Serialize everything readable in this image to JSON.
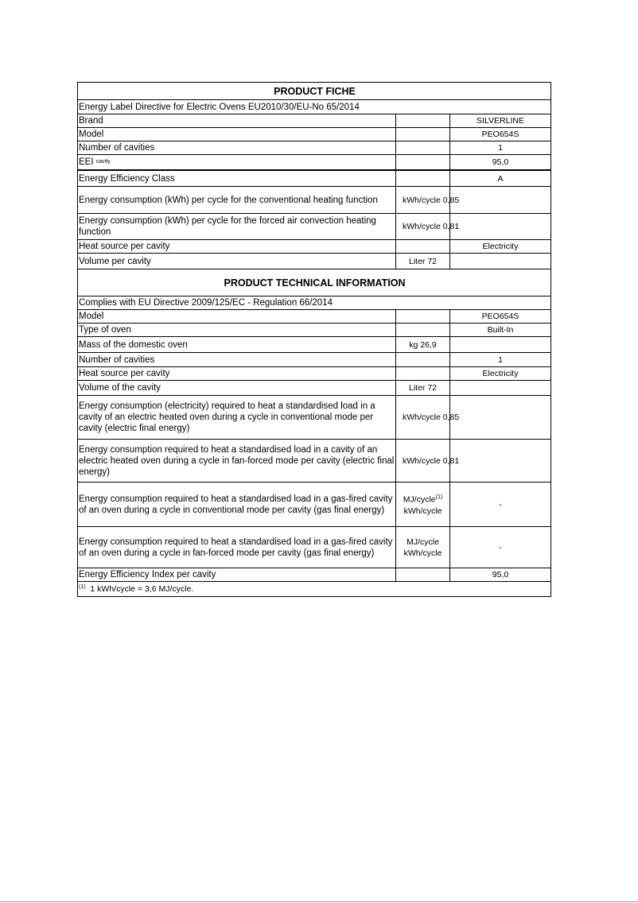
{
  "fiche": {
    "title": "PRODUCT FICHE",
    "directive": "Energy Label Directive for Electric Ovens EU2010/30/EU-No 65/2014",
    "rows": [
      {
        "label": "Brand",
        "unit": "",
        "value": "SILVERLINE"
      },
      {
        "label": "Model",
        "unit": "",
        "value": "PEO654S"
      },
      {
        "label": "Number of cavities",
        "unit": "",
        "value": "1"
      },
      {
        "label": "EEI",
        "label_sub": "cavity",
        "unit": "",
        "value": "95,0"
      },
      {
        "label": "Energy Efficiency Class",
        "unit": "",
        "value": "A"
      },
      {
        "label": "Energy consumption (kWh) per cycle for the conventional heating function",
        "unit": "kWh/cycle 0,85",
        "value": ""
      },
      {
        "label": "Energy consumption (kWh) per cycle for the forced air convection heating function",
        "unit": "kWh/cycle 0,81",
        "value": ""
      },
      {
        "label": "Heat source per cavity",
        "unit": "",
        "value": "Electricity"
      },
      {
        "label": "Volume per cavity",
        "unit": "Liter 72",
        "value": ""
      }
    ]
  },
  "technical": {
    "title": "PRODUCT TECHNICAL INFORMATION",
    "directive": "Complies with EU Directive 2009/125/EC - Regulation 66/2014",
    "rows": [
      {
        "label": "Model",
        "unit": "",
        "value": "PEO654S"
      },
      {
        "label": "Type of oven",
        "unit": "",
        "value": "Built-In"
      },
      {
        "label": "Mass of the domestic oven",
        "unit": "kg 26,9",
        "value": ""
      },
      {
        "label": "Number of cavities",
        "unit": "",
        "value": "1"
      },
      {
        "label": "Heat source per cavity",
        "unit": "",
        "value": "Electricity"
      },
      {
        "label": "Volume of the cavity",
        "unit": "Liter 72",
        "value": ""
      },
      {
        "label": "Energy consumption (electricity) required to heat a standardised load in a cavity of an electric heated oven during a cycle in conventional mode per cavity (electric final energy)",
        "unit": "kWh/cycle 0,85",
        "value": ""
      },
      {
        "label": "Energy consumption required to heat a standardised load in a cavity of an electric heated oven during a cycle in fan-forced mode per cavity (electric final energy)",
        "unit": "kWh/cycle 0,81",
        "value": ""
      },
      {
        "label": "Energy consumption required to heat a standardised load in a gas-fired cavity of an oven during a cycle in conventional mode per cavity (gas final energy)",
        "unit": "MJ/cycle",
        "unit_sup": "(1)",
        "unit2": "kWh/cycle",
        "value": "-"
      },
      {
        "label": "Energy consumption required to heat a standardised load in a gas-fired cavity of an oven during a cycle in fan-forced mode per cavity (gas final energy)",
        "unit": "MJ/cycle",
        "unit2": "kWh/cycle",
        "value": "-"
      },
      {
        "label": "Energy Efficiency Index per cavity",
        "unit": "",
        "value": "95,0"
      }
    ],
    "footnote_mark": "(1)",
    "footnote": "1 kWh/cycle = 3,6 MJ/cycle."
  }
}
